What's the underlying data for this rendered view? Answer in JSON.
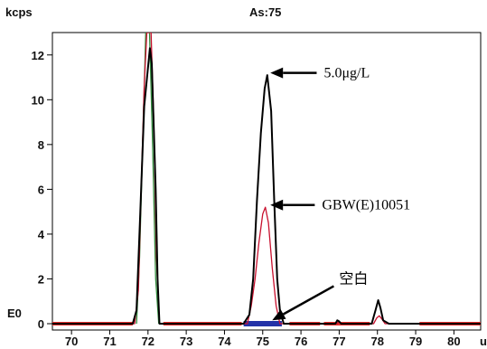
{
  "chart_data": {
    "type": "line",
    "title": "As:75",
    "ylabel": "kcps",
    "xlabel": "u",
    "y_origin_label": "E0",
    "xlim": [
      69.5,
      80.7
    ],
    "ylim": [
      0,
      13
    ],
    "x_ticks": [
      70,
      71,
      72,
      73,
      74,
      75,
      76,
      77,
      78,
      79,
      80
    ],
    "y_ticks": [
      0,
      2,
      4,
      6,
      8,
      10,
      12
    ],
    "series": [
      {
        "name": "",
        "color": "#000000",
        "points": [
          [
            69.5,
            0
          ],
          [
            71.6,
            0
          ],
          [
            71.7,
            0.6
          ],
          [
            71.8,
            5
          ],
          [
            71.9,
            9.7
          ],
          [
            72.05,
            12.3
          ],
          [
            72.1,
            11.6
          ],
          [
            72.2,
            6
          ],
          [
            72.25,
            2
          ],
          [
            72.3,
            0
          ],
          [
            74.5,
            0
          ],
          [
            74.65,
            0.4
          ],
          [
            74.75,
            2
          ],
          [
            74.85,
            5.5
          ],
          [
            74.95,
            8.5
          ],
          [
            75.05,
            10.5
          ],
          [
            75.12,
            11.1
          ],
          [
            75.22,
            9.5
          ],
          [
            75.3,
            5.5
          ],
          [
            75.38,
            2
          ],
          [
            75.45,
            0.6
          ],
          [
            75.55,
            0
          ],
          [
            76.9,
            0
          ],
          [
            76.95,
            0.15
          ],
          [
            77.0,
            0.1
          ],
          [
            77.05,
            0
          ],
          [
            77.85,
            0
          ],
          [
            77.95,
            0.6
          ],
          [
            78.02,
            1.05
          ],
          [
            78.08,
            0.7
          ],
          [
            78.15,
            0.15
          ],
          [
            78.3,
            0
          ],
          [
            80.7,
            0
          ]
        ]
      },
      {
        "name": "",
        "color": "#c8102e",
        "points": [
          [
            69.5,
            0
          ],
          [
            71.65,
            0
          ],
          [
            71.75,
            1.5
          ],
          [
            71.82,
            6
          ],
          [
            71.9,
            10.6
          ],
          [
            71.97,
            13
          ],
          [
            72.08,
            13
          ],
          [
            72.15,
            9
          ],
          [
            72.22,
            3
          ],
          [
            72.3,
            0
          ],
          [
            74.6,
            0
          ],
          [
            74.7,
            0.8
          ],
          [
            74.8,
            2
          ],
          [
            74.9,
            3.6
          ],
          [
            75.0,
            4.9
          ],
          [
            75.07,
            5.2
          ],
          [
            75.15,
            4.5
          ],
          [
            75.25,
            2.5
          ],
          [
            75.35,
            0.8
          ],
          [
            75.45,
            0
          ],
          [
            76.95,
            0
          ],
          [
            77.0,
            0.08
          ],
          [
            77.05,
            0
          ],
          [
            77.9,
            0
          ],
          [
            77.98,
            0.25
          ],
          [
            78.05,
            0.35
          ],
          [
            78.12,
            0.2
          ],
          [
            78.2,
            0
          ],
          [
            80.7,
            0
          ]
        ]
      },
      {
        "name": "",
        "color": "#2e8b3a",
        "points": [
          [
            71.7,
            0
          ],
          [
            71.78,
            3
          ],
          [
            71.86,
            8
          ],
          [
            71.94,
            13
          ],
          [
            72.04,
            13
          ],
          [
            72.12,
            8
          ],
          [
            72.2,
            2
          ],
          [
            72.28,
            0
          ]
        ]
      }
    ],
    "baseline_segments": [
      {
        "color": "#e8312f",
        "from": 69.5,
        "to": 71.6
      },
      {
        "color": "#e8312f",
        "from": 72.4,
        "to": 74.45
      },
      {
        "color": "#e8312f",
        "from": 75.7,
        "to": 76.5
      },
      {
        "color": "#e8312f",
        "from": 76.6,
        "to": 77.8
      },
      {
        "color": "#e8312f",
        "from": 79.1,
        "to": 80.7
      },
      {
        "color": "#2332a8",
        "from": 74.5,
        "to": 75.5
      }
    ],
    "annotations": [
      {
        "text": "5.0μg/L",
        "x": 76.6,
        "y": 11.2,
        "arrow_to": [
          75.2,
          11.2
        ]
      },
      {
        "text": "GBW(E)10051",
        "x": 76.55,
        "y": 5.3,
        "arrow_to": [
          75.2,
          5.3
        ]
      },
      {
        "text": "空白",
        "x": 77.0,
        "y": 2.0,
        "arrow_to": [
          75.25,
          0.15
        ]
      }
    ]
  }
}
